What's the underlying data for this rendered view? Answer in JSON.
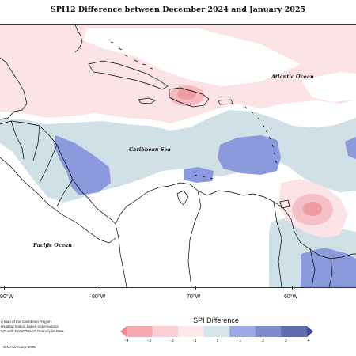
{
  "map": {
    "title": "SPI12 Difference between December 2024 and January 2025",
    "labels": {
      "atlantic": "Atlantic Ocean",
      "caribbean": "Caribbean Sea",
      "pacific": "Pacific Ocean"
    },
    "longitude_ticks": [
      "90°W",
      "80°W",
      "70°W",
      "60°W"
    ],
    "credits": [
      "n Map of the Caribbean Region",
      "regating station based observations,",
      "CF, with NCEP/NCAR Reanalysis Data.",
      "CIMH January 2025"
    ],
    "colors": {
      "strong_dry": "#f08c90",
      "mild_dry": "#fce3e6",
      "neutral": "#ffffff",
      "mild_wet": "#cfe1e6",
      "moderate_wet": "#8b99dd",
      "land_outline": "#000000"
    }
  },
  "legend": {
    "title": "SPI Difference",
    "ticks": [
      "-4",
      "-3",
      "-2",
      "-1",
      "0",
      "1",
      "2",
      "3",
      "4"
    ],
    "bin_colors": [
      "#f2868c",
      "#f6aab0",
      "#fbcfd3",
      "#fde8ea",
      "#d4e6ec",
      "#9aa8e4",
      "#7a8ccd",
      "#5d6db0",
      "#3c4a8e"
    ]
  }
}
